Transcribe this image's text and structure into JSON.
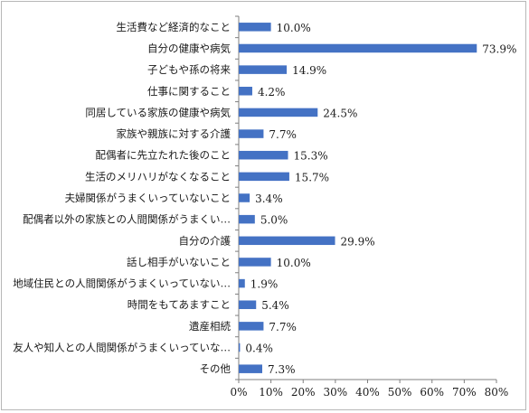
{
  "chart_data": {
    "type": "bar",
    "orientation": "horizontal",
    "categories": [
      "生活費など経済的なこと",
      "自分の健康や病気",
      "子どもや孫の将来",
      "仕事に関すること",
      "同居している家族の健康や病気",
      "家族や親族に対する介護",
      "配偶者に先立たれた後のこと",
      "生活のメリハリがなくなること",
      "夫婦関係がうまくいっていないこと",
      "配偶者以外の家族との人間関係がうまくい…",
      "自分の介護",
      "話し相手がいないこと",
      "地域住民との人間関係がうまくいっていない…",
      "時間をもてあますこと",
      "遺産相続",
      "友人や知人との人間関係がうまくいっていな…",
      "その他"
    ],
    "values": [
      10.0,
      73.9,
      14.9,
      4.2,
      24.5,
      7.7,
      15.3,
      15.7,
      3.4,
      5.0,
      29.9,
      10.0,
      1.9,
      5.4,
      7.7,
      0.4,
      7.3
    ],
    "value_labels": [
      "10.0%",
      "73.9%",
      "14.9%",
      "4.2%",
      "24.5%",
      "7.7%",
      "15.3%",
      "15.7%",
      "3.4%",
      "5.0%",
      "29.9%",
      "10.0%",
      "1.9%",
      "5.4%",
      "7.7%",
      "0.4%",
      "7.3%"
    ],
    "x_ticks": [
      "0%",
      "10%",
      "20%",
      "30%",
      "40%",
      "50%",
      "60%",
      "70%",
      "80%"
    ],
    "xlim": [
      0,
      80
    ],
    "title": "",
    "xlabel": "",
    "ylabel": "",
    "grid": false,
    "legend": "none",
    "bar_color": "#4472c4"
  }
}
